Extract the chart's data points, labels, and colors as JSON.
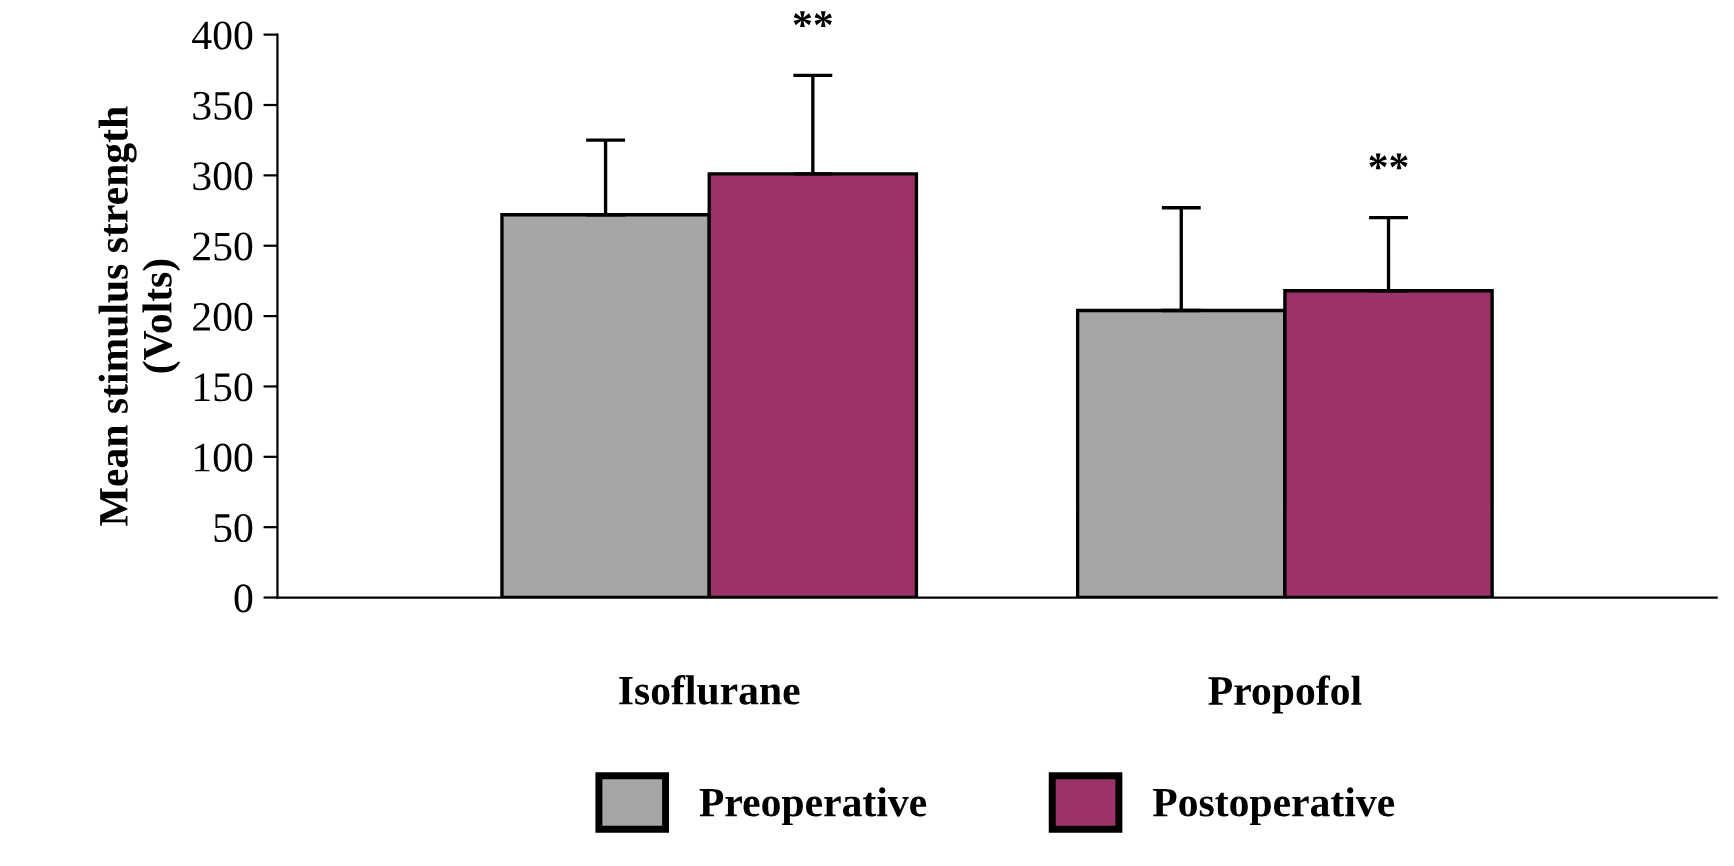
{
  "chart_data": {
    "type": "bar",
    "ylabel": "Mean stimulus strength\n(Volts)",
    "categories": [
      "Isoflurane",
      "Propofol"
    ],
    "series": [
      {
        "name": "Preoperative",
        "color": "#a6a6a6",
        "values": [
          272,
          204
        ],
        "errors": [
          [
            272,
            325
          ],
          [
            204,
            277
          ]
        ]
      },
      {
        "name": "Postoperative",
        "color": "#9b3366",
        "values": [
          301,
          218
        ],
        "errors": [
          [
            301,
            371
          ],
          [
            218,
            270
          ]
        ]
      }
    ],
    "ylim": [
      0,
      400
    ],
    "yticks": [
      0,
      50,
      100,
      150,
      200,
      250,
      300,
      350,
      400
    ],
    "grid": false,
    "legend": "bottom",
    "annotations": [
      "**",
      "**"
    ]
  }
}
